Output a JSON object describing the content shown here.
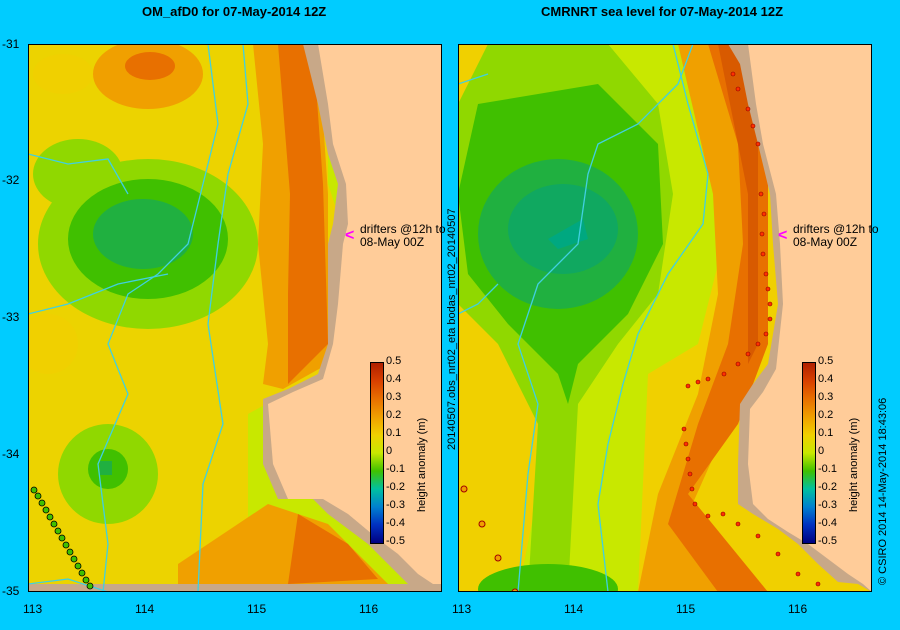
{
  "left_panel": {
    "title": "OM_afD0 for 07-May-2014 12Z",
    "drifter_note_line1": "drifters @12h to",
    "drifter_note_line2": "08-May 00Z"
  },
  "right_panel": {
    "title": "CMRNRT sea level  for 07-May-2014 12Z",
    "side_label": "20140507.obs_nrt02_eta  bodas_nrt02_20140507",
    "drifter_note_line1": "drifters @12h to",
    "drifter_note_line2": "08-May 00Z"
  },
  "colorbar": {
    "label": "height anomaly (m)",
    "ticks": [
      "0.5",
      "0.4",
      "0.3",
      "0.2",
      "0.1",
      "0",
      "-0.1",
      "-0.2",
      "-0.3",
      "-0.4",
      "-0.5"
    ],
    "colors": [
      "#b02000",
      "#d84000",
      "#e87000",
      "#f0a000",
      "#f0d000",
      "#c8e800",
      "#40c000",
      "#00c0a0",
      "#0080d0",
      "#0030c0",
      "#000080"
    ]
  },
  "axes": {
    "lat_ticks": [
      "-31",
      "-32",
      "-33",
      "-34",
      "-35"
    ],
    "lon_ticks_left": [
      "113",
      "114",
      "115",
      "116"
    ],
    "lon_ticks_right": [
      "113",
      "114",
      "115",
      "116"
    ]
  },
  "credit": "© CSIRO 2014   14-May-2014 18:43:06",
  "colors": {
    "background": "#00ccff",
    "land": "#ffcc99",
    "coast_shelf": "#c8a888",
    "drifter_arrow": "#ff00ff",
    "bathy_contour": "#40d0e0"
  }
}
